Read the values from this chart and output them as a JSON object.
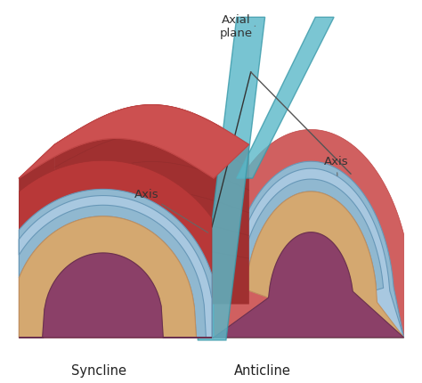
{
  "bg": "white",
  "label_syncline": "Syncline",
  "label_anticline": "Anticline",
  "label_axis": "Axis",
  "label_axial_plane": "Axial\nplane",
  "red_dark": "#a03030",
  "red_mid": "#b83838",
  "red_light": "#cc5050",
  "red_top": "#c84848",
  "red_face": "#d06060",
  "red_side": "#bf4545",
  "blue_main": "#90b8d0",
  "blue_dark": "#6898b8",
  "blue_light": "#a8c8e0",
  "tan_main": "#d4a870",
  "tan_light": "#dbb880",
  "purple_main": "#8b4068",
  "teal_plane": "#5ab8c8",
  "teal_dark": "#3a9aaa",
  "text_color": "#444444",
  "anno_line": "#555555",
  "striation": "#7a2828"
}
